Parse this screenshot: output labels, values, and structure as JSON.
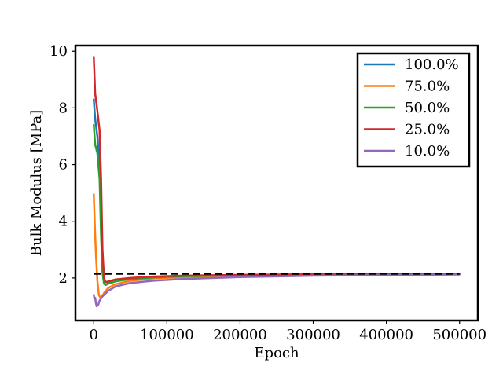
{
  "chart_data": {
    "type": "line",
    "title": "",
    "xlabel": "Epoch",
    "ylabel": "Bulk Modulus [MPa]",
    "xlim": [
      -25000,
      525000
    ],
    "ylim": [
      0.5,
      10.2
    ],
    "xticks": [
      0,
      100000,
      200000,
      300000,
      400000,
      500000
    ],
    "yticks": [
      2,
      4,
      6,
      8,
      10
    ],
    "grid": false,
    "legend_position": "top-right",
    "series": [
      {
        "name": "100.0%",
        "color": "#1f77b4",
        "x": [
          0,
          2000,
          5000,
          8000,
          10000,
          12000,
          14000,
          16000,
          20000,
          30000,
          50000,
          80000,
          120000,
          200000,
          300000,
          400000,
          500000
        ],
        "y": [
          8.3,
          7.6,
          7.0,
          6.0,
          4.5,
          2.8,
          2.0,
          1.85,
          1.85,
          1.9,
          1.97,
          2.02,
          2.06,
          2.1,
          2.13,
          2.14,
          2.15
        ]
      },
      {
        "name": "75.0%",
        "color": "#ff7f0e",
        "x": [
          0,
          1500,
          3000,
          5000,
          7000,
          9000,
          11000,
          15000,
          20000,
          30000,
          50000,
          80000,
          120000,
          200000,
          300000,
          400000,
          500000
        ],
        "y": [
          4.95,
          3.8,
          2.8,
          1.9,
          1.4,
          1.3,
          1.35,
          1.5,
          1.65,
          1.78,
          1.9,
          1.98,
          2.03,
          2.08,
          2.11,
          2.13,
          2.14
        ]
      },
      {
        "name": "50.0%",
        "color": "#2ca02c",
        "x": [
          0,
          2000,
          5000,
          8000,
          10000,
          12000,
          14000,
          16000,
          20000,
          30000,
          50000,
          80000,
          120000,
          200000,
          300000,
          400000,
          500000
        ],
        "y": [
          7.4,
          6.7,
          6.4,
          5.5,
          3.5,
          2.2,
          1.8,
          1.75,
          1.8,
          1.88,
          1.96,
          2.02,
          2.06,
          2.1,
          2.13,
          2.14,
          2.15
        ]
      },
      {
        "name": "25.0%",
        "color": "#d62728",
        "x": [
          0,
          2000,
          5000,
          8000,
          10000,
          12000,
          14000,
          16000,
          20000,
          30000,
          50000,
          80000,
          120000,
          200000,
          300000,
          400000,
          500000
        ],
        "y": [
          9.8,
          8.5,
          7.9,
          7.2,
          5.5,
          3.0,
          2.0,
          1.85,
          1.88,
          1.95,
          2.0,
          2.05,
          2.08,
          2.11,
          2.13,
          2.14,
          2.15
        ]
      },
      {
        "name": "10.0%",
        "color": "#9467bd",
        "x": [
          0,
          1000,
          2000,
          3000,
          4000,
          6000,
          8000,
          12000,
          20000,
          30000,
          50000,
          80000,
          120000,
          200000,
          300000,
          400000,
          500000
        ],
        "y": [
          1.4,
          1.25,
          1.3,
          1.1,
          1.0,
          1.05,
          1.2,
          1.35,
          1.55,
          1.7,
          1.82,
          1.9,
          1.96,
          2.03,
          2.08,
          2.1,
          2.12
        ]
      }
    ],
    "reference_line": {
      "y": 2.15,
      "x_range": [
        0,
        500000
      ],
      "style": "dashed",
      "color": "#000000"
    }
  }
}
